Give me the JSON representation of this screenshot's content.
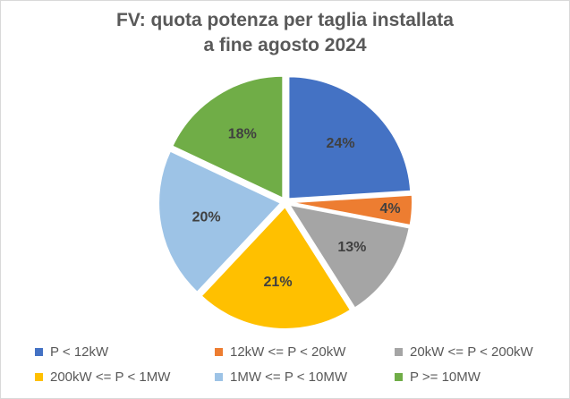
{
  "chart_data": {
    "type": "pie",
    "title_line1": "FV: quota potenza per taglia installata",
    "title_line2": "a fine agosto 2024",
    "categories": [
      "P < 12kW",
      "12kW <= P < 20kW",
      "20kW <= P < 200kW",
      "200kW <= P < 1MW",
      "1MW <= P < 10MW",
      "P >= 10MW"
    ],
    "values": [
      24,
      4,
      13,
      21,
      20,
      18
    ],
    "labels": [
      "24%",
      "4%",
      "13%",
      "21%",
      "20%",
      "18%"
    ],
    "colors": [
      "#4472C4",
      "#ED7D31",
      "#A5A5A5",
      "#FFC000",
      "#9DC3E6",
      "#70AD47"
    ],
    "legend_position": "bottom"
  }
}
